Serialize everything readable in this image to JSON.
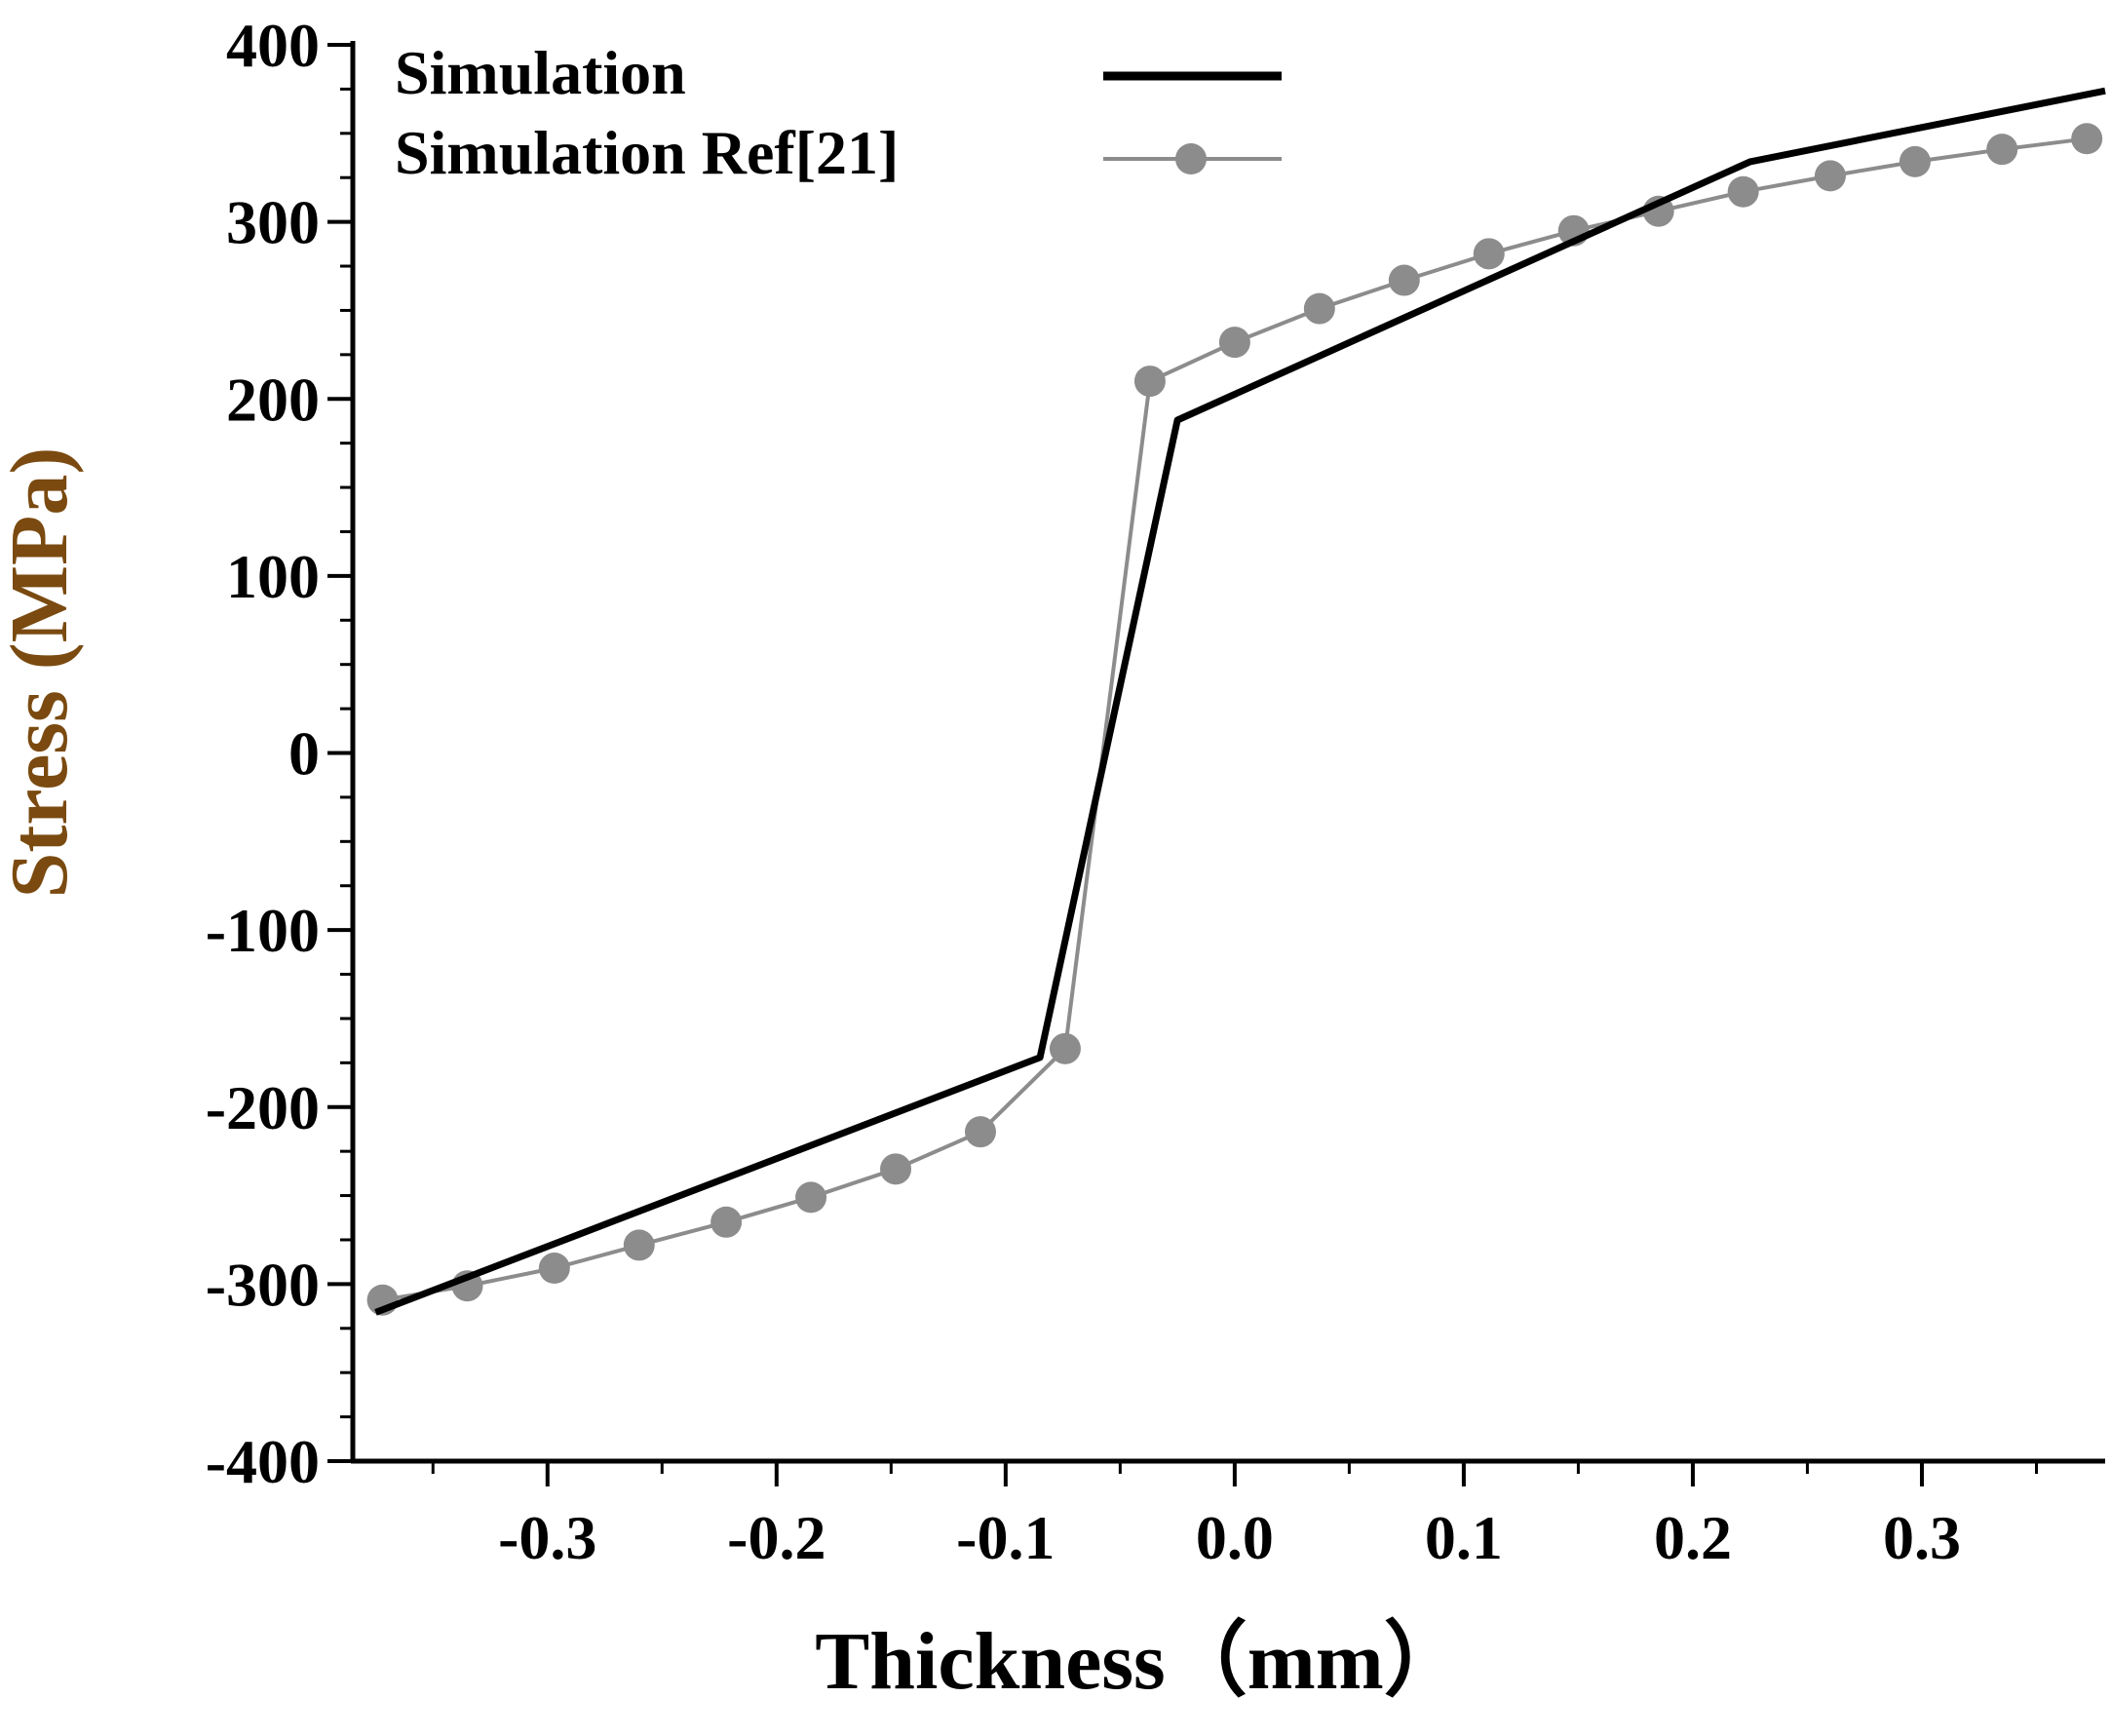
{
  "chart_data": {
    "type": "line",
    "title": "",
    "xlabel": "Thickness（mm）",
    "ylabel": "Stress (MPa)",
    "xlim": [
      -0.385,
      0.38
    ],
    "ylim": [
      -400,
      400
    ],
    "x_ticks": [
      "-0.3",
      "-0.2",
      "-0.1",
      "0.0",
      "0.1",
      "0.2",
      "0.3"
    ],
    "y_ticks": [
      "400",
      "300",
      "200",
      "100",
      "0",
      "-100",
      "-200",
      "-300",
      "-400"
    ],
    "grid": false,
    "legend_position": "top-left",
    "colors": {
      "axis": "#000000",
      "label": "#7a4a10",
      "series1": "#000000",
      "series2": "#8c8c8c",
      "marker": "#8c8c8c"
    },
    "series": [
      {
        "name": "Simulation",
        "marker": false,
        "x": [
          -0.375,
          -0.085,
          -0.025,
          0.225,
          0.38
        ],
        "y": [
          -316,
          -172,
          188,
          334,
          374
        ]
      },
      {
        "name": "Simulation Ref[21]",
        "marker": true,
        "x": [
          -0.372,
          -0.335,
          -0.297,
          -0.26,
          -0.222,
          -0.185,
          -0.148,
          -0.111,
          -0.074,
          -0.037,
          0.0,
          0.037,
          0.074,
          0.111,
          0.148,
          0.185,
          0.222,
          0.26,
          0.297,
          0.335,
          0.372
        ],
        "y": [
          -309,
          -301,
          -291,
          -278,
          -265,
          -251,
          -235,
          -214,
          -167,
          210,
          232,
          251,
          267,
          282,
          295,
          306,
          317,
          326,
          334,
          341,
          347
        ]
      }
    ]
  }
}
